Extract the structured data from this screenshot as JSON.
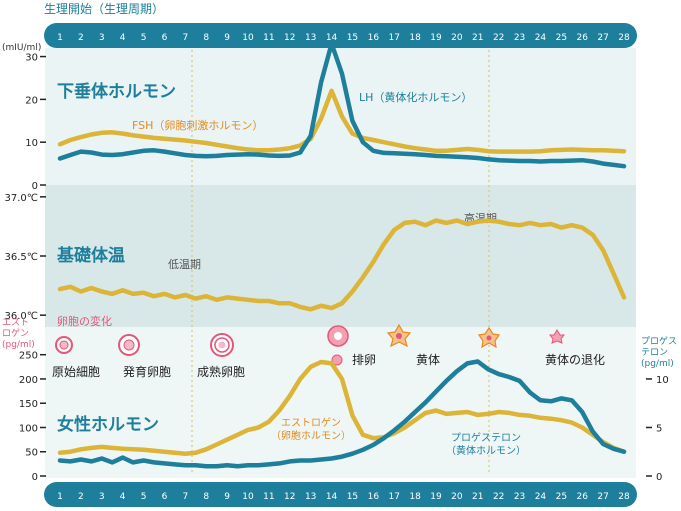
{
  "header_label": "生理開始（生理周期）",
  "days": [
    "1",
    "2",
    "3",
    "4",
    "5",
    "6",
    "7",
    "8",
    "9",
    "10",
    "11",
    "12",
    "13",
    "14",
    "15",
    "16",
    "17",
    "18",
    "19",
    "20",
    "21",
    "22",
    "23",
    "24",
    "25",
    "26",
    "27",
    "28"
  ],
  "colors": {
    "teal": "#1d7f9b",
    "gold": "#dcb437",
    "orange": "#e58a1f",
    "pink": "#e3577a",
    "panel": "#e9f3f3",
    "bbt_panel": "#d7e8e8",
    "guide": "#d4c25e"
  },
  "chart_data": [
    {
      "type": "line",
      "title": "下垂体ホルモン",
      "ylabel": "(mIU/ml)",
      "ylim": [
        0,
        32
      ],
      "yticks": [
        "0",
        "10",
        "20",
        "30"
      ],
      "x": [
        1,
        1.5,
        2,
        2.5,
        3,
        3.5,
        4,
        4.5,
        5,
        5.5,
        6,
        6.5,
        7,
        7.5,
        8,
        8.5,
        9,
        9.5,
        10,
        10.5,
        11,
        11.5,
        12,
        12.5,
        13,
        13.5,
        14,
        14.5,
        15,
        15.5,
        16,
        16.5,
        17,
        17.5,
        18,
        18.5,
        19,
        19.5,
        20,
        20.5,
        21,
        21.5,
        22,
        22.5,
        23,
        23.5,
        24,
        24.5,
        25,
        25.5,
        26,
        26.5,
        27,
        27.5,
        28
      ],
      "series": [
        {
          "name": "FSH（卵胞刺激ホルモン）",
          "color": "#dcb437",
          "values": [
            9.5,
            10.5,
            11.2,
            11.8,
            12.2,
            12.3,
            12.0,
            11.6,
            11.3,
            11.0,
            10.8,
            10.6,
            10.4,
            10.1,
            9.8,
            9.4,
            9.0,
            8.6,
            8.3,
            8.1,
            8.1,
            8.3,
            8.6,
            9.2,
            10.8,
            15.5,
            22.0,
            16.0,
            12.0,
            11.0,
            10.5,
            10.0,
            9.5,
            9.0,
            8.6,
            8.3,
            8.0,
            8.0,
            8.2,
            8.4,
            8.2,
            7.9,
            7.8,
            7.8,
            7.8,
            7.8,
            7.9,
            8.1,
            8.2,
            8.3,
            8.2,
            8.1,
            8.1,
            8.0,
            7.9
          ]
        },
        {
          "name": "LH（黄体化ホルモン）",
          "color": "#1d7f9b",
          "values": [
            6.2,
            7.0,
            7.8,
            7.6,
            7.1,
            7.0,
            7.2,
            7.6,
            8.0,
            8.1,
            7.8,
            7.4,
            7.0,
            6.8,
            6.7,
            6.8,
            7.0,
            7.1,
            7.2,
            7.1,
            6.9,
            6.8,
            6.9,
            7.6,
            11.5,
            24.0,
            33.0,
            26.0,
            15.0,
            10.0,
            8.0,
            7.5,
            7.4,
            7.3,
            7.2,
            7.0,
            6.8,
            6.7,
            6.6,
            6.5,
            6.3,
            6.0,
            5.8,
            5.7,
            5.6,
            5.6,
            5.5,
            5.6,
            5.6,
            5.7,
            5.8,
            5.5,
            5.0,
            4.7,
            4.4
          ]
        }
      ]
    },
    {
      "type": "line",
      "title": "基礎体温",
      "ylim": [
        35.9,
        37.1
      ],
      "yticks": [
        "36.0℃",
        "36.5℃",
        "37.0℃"
      ],
      "x": [
        1,
        1.5,
        2,
        2.5,
        3,
        3.5,
        4,
        4.5,
        5,
        5.5,
        6,
        6.5,
        7,
        7.5,
        8,
        8.5,
        9,
        9.5,
        10,
        10.5,
        11,
        11.5,
        12,
        12.5,
        13,
        13.5,
        14,
        14.5,
        15,
        15.5,
        16,
        16.5,
        17,
        17.5,
        18,
        18.5,
        19,
        19.5,
        20,
        20.5,
        21,
        21.5,
        22,
        22.5,
        23,
        23.5,
        24,
        24.5,
        25,
        25.5,
        26,
        26.5,
        27,
        27.5,
        28
      ],
      "series": [
        {
          "name": "基礎体温",
          "color": "#dcb437",
          "values": [
            36.22,
            36.24,
            36.2,
            36.23,
            36.2,
            36.18,
            36.21,
            36.18,
            36.19,
            36.16,
            36.18,
            36.15,
            36.17,
            36.14,
            36.16,
            36.13,
            36.15,
            36.14,
            36.13,
            36.12,
            36.12,
            36.1,
            36.1,
            36.07,
            36.05,
            36.08,
            36.06,
            36.1,
            36.2,
            36.32,
            36.45,
            36.6,
            36.72,
            36.78,
            36.79,
            36.76,
            36.8,
            36.78,
            36.8,
            36.77,
            36.79,
            36.8,
            36.79,
            36.77,
            36.76,
            36.78,
            36.76,
            36.77,
            36.74,
            36.76,
            36.74,
            36.68,
            36.55,
            36.35,
            36.15
          ]
        }
      ],
      "annotations": [
        "低温期",
        "高温期"
      ]
    },
    {
      "type": "line",
      "title": "女性ホルモン",
      "ylabel": "エストロゲン\n(pg/ml)",
      "y2label": "プロゲステロン\n(pg/ml)",
      "ylim": [
        0,
        270
      ],
      "yticks": [
        "0",
        "50",
        "100",
        "150",
        "200",
        "250"
      ],
      "y2lim": [
        0,
        13.5
      ],
      "y2ticks": [
        "0",
        "5",
        "10"
      ],
      "x": [
        1,
        1.5,
        2,
        2.5,
        3,
        3.5,
        4,
        4.5,
        5,
        5.5,
        6,
        6.5,
        7,
        7.5,
        8,
        8.5,
        9,
        9.5,
        10,
        10.5,
        11,
        11.5,
        12,
        12.5,
        13,
        13.5,
        14,
        14.5,
        15,
        15.5,
        16,
        16.5,
        17,
        17.5,
        18,
        18.5,
        19,
        19.5,
        20,
        20.5,
        21,
        21.5,
        22,
        22.5,
        23,
        23.5,
        24,
        24.5,
        25,
        25.5,
        26,
        26.5,
        27,
        27.5,
        28
      ],
      "series": [
        {
          "name": "エストロゲン（卵胞ホルモン）",
          "color": "#dcb437",
          "axis": "left",
          "values": [
            48,
            50,
            55,
            58,
            60,
            58,
            56,
            55,
            54,
            52,
            50,
            48,
            46,
            48,
            55,
            65,
            75,
            85,
            95,
            100,
            112,
            135,
            165,
            200,
            225,
            235,
            232,
            200,
            125,
            85,
            78,
            80,
            88,
            100,
            115,
            130,
            135,
            128,
            130,
            132,
            126,
            128,
            132,
            130,
            126,
            124,
            120,
            118,
            115,
            110,
            100,
            85,
            70,
            58,
            50
          ]
        },
        {
          "name": "プロゲステロン（黄体ホルモン）",
          "color": "#1d7f9b",
          "axis": "right",
          "values": [
            1.6,
            1.5,
            1.7,
            1.5,
            1.8,
            1.4,
            1.9,
            1.4,
            1.6,
            1.4,
            1.3,
            1.2,
            1.1,
            1.1,
            1.0,
            1.0,
            1.1,
            1.0,
            1.1,
            1.1,
            1.2,
            1.3,
            1.5,
            1.6,
            1.6,
            1.7,
            1.8,
            2.0,
            2.3,
            2.7,
            3.2,
            3.9,
            4.7,
            5.6,
            6.6,
            7.6,
            8.7,
            9.8,
            10.8,
            11.6,
            11.8,
            11.0,
            10.5,
            10.2,
            9.8,
            8.6,
            7.8,
            7.7,
            8.0,
            7.8,
            6.6,
            4.6,
            3.3,
            2.8,
            2.5
          ]
        }
      ]
    }
  ],
  "ovary": {
    "title": "卵胞の変化",
    "stages": [
      "原始細胞",
      "発育卵胞",
      "成熟卵胞",
      "排卵",
      "黄体",
      "黄体の退化"
    ]
  }
}
